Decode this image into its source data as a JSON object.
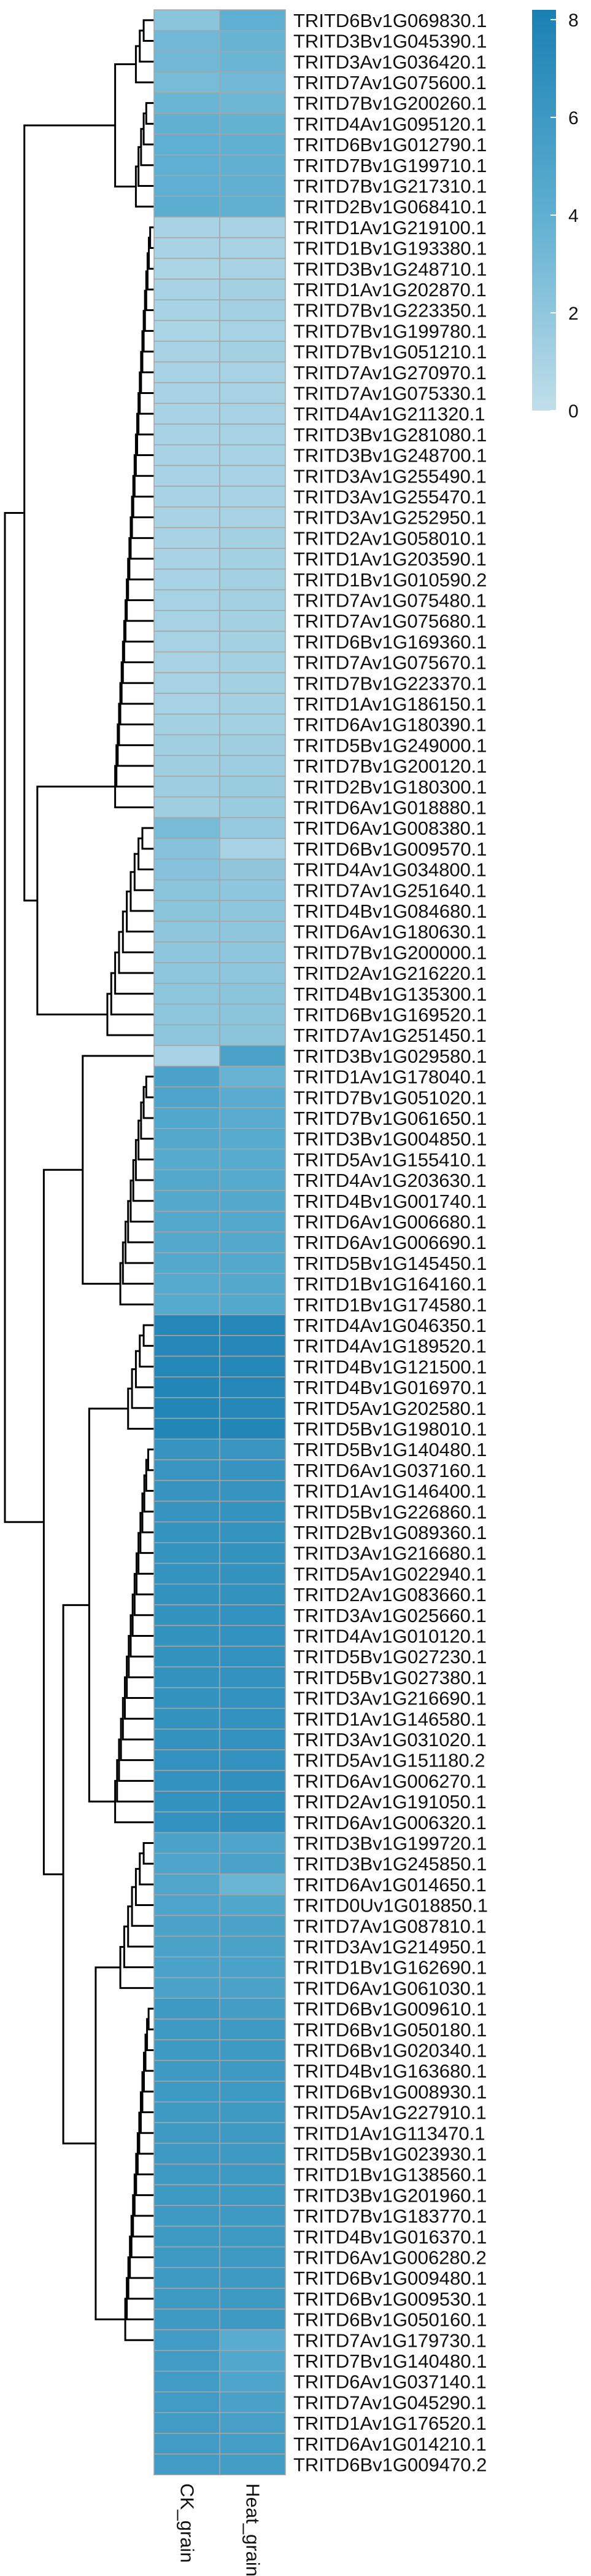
{
  "chart_data": {
    "type": "heatmap",
    "columns": [
      "CK_grain",
      "Heat_grain"
    ],
    "rows": [
      "TRITD6Bv1G069830.1",
      "TRITD3Bv1G045390.1",
      "TRITD3Av1G036420.1",
      "TRITD7Av1G075600.1",
      "TRITD7Bv1G200260.1",
      "TRITD4Av1G095120.1",
      "TRITD6Bv1G012790.1",
      "TRITD7Bv1G199710.1",
      "TRITD7Bv1G217310.1",
      "TRITD2Bv1G068410.1",
      "TRITD1Av1G219100.1",
      "TRITD1Bv1G193380.1",
      "TRITD3Bv1G248710.1",
      "TRITD1Av1G202870.1",
      "TRITD7Bv1G223350.1",
      "TRITD7Bv1G199780.1",
      "TRITD7Bv1G051210.1",
      "TRITD7Av1G270970.1",
      "TRITD7Av1G075330.1",
      "TRITD4Av1G211320.1",
      "TRITD3Bv1G281080.1",
      "TRITD3Bv1G248700.1",
      "TRITD3Av1G255490.1",
      "TRITD3Av1G255470.1",
      "TRITD3Av1G252950.1",
      "TRITD2Av1G058010.1",
      "TRITD1Av1G203590.1",
      "TRITD1Bv1G010590.2",
      "TRITD7Av1G075480.1",
      "TRITD7Av1G075680.1",
      "TRITD6Bv1G169360.1",
      "TRITD7Av1G075670.1",
      "TRITD7Bv1G223370.1",
      "TRITD1Av1G186150.1",
      "TRITD6Av1G180390.1",
      "TRITD5Bv1G249000.1",
      "TRITD7Bv1G200120.1",
      "TRITD2Bv1G180300.1",
      "TRITD6Av1G018880.1",
      "TRITD6Av1G008380.1",
      "TRITD6Bv1G009570.1",
      "TRITD4Av1G034800.1",
      "TRITD7Av1G251640.1",
      "TRITD4Bv1G084680.1",
      "TRITD6Av1G180630.1",
      "TRITD7Bv1G200000.1",
      "TRITD2Av1G216220.1",
      "TRITD4Bv1G135300.1",
      "TRITD6Bv1G169520.1",
      "TRITD7Av1G251450.1",
      "TRITD3Bv1G029580.1",
      "TRITD1Av1G178040.1",
      "TRITD7Bv1G051020.1",
      "TRITD7Bv1G061650.1",
      "TRITD3Bv1G004850.1",
      "TRITD5Av1G155410.1",
      "TRITD4Av1G203630.1",
      "TRITD4Bv1G001740.1",
      "TRITD6Av1G006680.1",
      "TRITD6Av1G006690.1",
      "TRITD5Bv1G145450.1",
      "TRITD1Bv1G164160.1",
      "TRITD1Bv1G174580.1",
      "TRITD4Av1G046350.1",
      "TRITD4Av1G189520.1",
      "TRITD4Bv1G121500.1",
      "TRITD4Bv1G016970.1",
      "TRITD5Av1G202580.1",
      "TRITD5Bv1G198010.1",
      "TRITD5Bv1G140480.1",
      "TRITD6Av1G037160.1",
      "TRITD1Av1G146400.1",
      "TRITD5Bv1G226860.1",
      "TRITD2Bv1G089360.1",
      "TRITD3Av1G216680.1",
      "TRITD5Av1G022940.1",
      "TRITD2Av1G083660.1",
      "TRITD3Av1G025660.1",
      "TRITD4Av1G010120.1",
      "TRITD5Bv1G027230.1",
      "TRITD5Bv1G027380.1",
      "TRITD3Av1G216690.1",
      "TRITD1Av1G146580.1",
      "TRITD3Av1G031020.1",
      "TRITD5Av1G151180.2",
      "TRITD6Av1G006270.1",
      "TRITD2Av1G191050.1",
      "TRITD6Av1G006320.1",
      "TRITD3Bv1G199720.1",
      "TRITD3Bv1G245850.1",
      "TRITD6Av1G014650.1",
      "TRITD0Uv1G018850.1",
      "TRITD7Av1G087810.1",
      "TRITD3Av1G214950.1",
      "TRITD1Bv1G162690.1",
      "TRITD6Av1G061030.1",
      "TRITD6Bv1G009610.1",
      "TRITD6Bv1G050180.1",
      "TRITD6Bv1G020340.1",
      "TRITD4Bv1G163680.1",
      "TRITD6Bv1G008930.1",
      "TRITD5Av1G227910.1",
      "TRITD1Av1G113470.1",
      "TRITD5Bv1G023930.1",
      "TRITD1Bv1G138560.1",
      "TRITD3Bv1G201960.1",
      "TRITD7Bv1G183770.1",
      "TRITD4Bv1G016370.1",
      "TRITD6Av1G006280.2",
      "TRITD6Bv1G009480.1",
      "TRITD6Bv1G009530.1",
      "TRITD6Bv1G050160.1",
      "TRITD7Av1G179730.1",
      "TRITD7Bv1G140480.1",
      "TRITD6Av1G037140.1",
      "TRITD7Av1G045290.1",
      "TRITD1Av1G176520.1",
      "TRITD6Av1G014210.1",
      "TRITD6Bv1G009470.2"
    ],
    "values": [
      [
        2.2,
        4.0
      ],
      [
        3.3,
        3.7
      ],
      [
        3.3,
        3.5
      ],
      [
        3.0,
        3.3
      ],
      [
        3.5,
        3.4
      ],
      [
        3.9,
        3.8
      ],
      [
        4.0,
        3.9
      ],
      [
        4.0,
        3.9
      ],
      [
        4.0,
        3.9
      ],
      [
        4.1,
        3.9
      ],
      [
        1.0,
        1.1
      ],
      [
        1.0,
        1.1
      ],
      [
        0.9,
        1.1
      ],
      [
        1.0,
        1.2
      ],
      [
        1.0,
        1.2
      ],
      [
        0.9,
        1.1
      ],
      [
        1.0,
        1.2
      ],
      [
        1.0,
        1.1
      ],
      [
        1.0,
        1.1
      ],
      [
        1.0,
        1.1
      ],
      [
        1.0,
        1.1
      ],
      [
        1.0,
        1.1
      ],
      [
        1.0,
        1.1
      ],
      [
        1.0,
        1.1
      ],
      [
        1.0,
        1.1
      ],
      [
        1.0,
        1.2
      ],
      [
        1.0,
        1.2
      ],
      [
        1.0,
        1.2
      ],
      [
        1.1,
        1.2
      ],
      [
        1.1,
        1.2
      ],
      [
        1.1,
        1.2
      ],
      [
        1.1,
        1.2
      ],
      [
        1.1,
        1.2
      ],
      [
        1.1,
        1.2
      ],
      [
        1.2,
        1.2
      ],
      [
        1.3,
        1.4
      ],
      [
        1.4,
        1.5
      ],
      [
        1.5,
        1.6
      ],
      [
        1.4,
        1.6
      ],
      [
        3.0,
        1.8
      ],
      [
        2.4,
        1.1
      ],
      [
        2.4,
        2.0
      ],
      [
        2.2,
        2.1
      ],
      [
        2.2,
        2.1
      ],
      [
        2.1,
        2.1
      ],
      [
        2.1,
        2.1
      ],
      [
        2.1,
        2.1
      ],
      [
        2.1,
        2.2
      ],
      [
        2.1,
        2.2
      ],
      [
        2.1,
        2.2
      ],
      [
        1.0,
        5.2
      ],
      [
        5.1,
        3.7
      ],
      [
        5.0,
        4.3
      ],
      [
        4.7,
        4.3
      ],
      [
        4.6,
        4.4
      ],
      [
        4.5,
        4.4
      ],
      [
        4.6,
        4.5
      ],
      [
        4.6,
        4.6
      ],
      [
        4.6,
        4.6
      ],
      [
        4.6,
        4.6
      ],
      [
        4.6,
        4.6
      ],
      [
        4.5,
        4.6
      ],
      [
        4.5,
        4.6
      ],
      [
        7.6,
        7.6
      ],
      [
        7.6,
        7.6
      ],
      [
        7.6,
        7.6
      ],
      [
        7.7,
        7.6
      ],
      [
        7.7,
        7.6
      ],
      [
        7.7,
        7.7
      ],
      [
        6.4,
        6.3
      ],
      [
        6.3,
        6.4
      ],
      [
        6.4,
        6.4
      ],
      [
        6.4,
        6.5
      ],
      [
        6.5,
        6.5
      ],
      [
        6.5,
        6.6
      ],
      [
        6.5,
        6.6
      ],
      [
        6.6,
        6.6
      ],
      [
        6.6,
        6.7
      ],
      [
        6.6,
        6.7
      ],
      [
        6.6,
        6.7
      ],
      [
        6.6,
        6.7
      ],
      [
        6.6,
        6.7
      ],
      [
        6.6,
        6.7
      ],
      [
        6.6,
        6.7
      ],
      [
        6.7,
        6.7
      ],
      [
        6.7,
        6.8
      ],
      [
        6.6,
        6.8
      ],
      [
        6.7,
        6.8
      ],
      [
        5.1,
        5.0
      ],
      [
        5.0,
        5.2
      ],
      [
        4.9,
        3.5
      ],
      [
        5.0,
        4.8
      ],
      [
        5.1,
        5.1
      ],
      [
        5.1,
        5.1
      ],
      [
        5.1,
        5.1
      ],
      [
        5.1,
        5.1
      ],
      [
        5.9,
        5.6
      ],
      [
        5.9,
        5.9
      ],
      [
        5.9,
        5.9
      ],
      [
        5.9,
        5.9
      ],
      [
        5.9,
        5.9
      ],
      [
        5.9,
        5.9
      ],
      [
        5.9,
        5.9
      ],
      [
        5.9,
        5.9
      ],
      [
        5.9,
        5.9
      ],
      [
        5.9,
        5.9
      ],
      [
        5.9,
        5.9
      ],
      [
        5.9,
        5.9
      ],
      [
        5.9,
        5.9
      ],
      [
        5.9,
        5.9
      ],
      [
        5.9,
        5.9
      ],
      [
        5.9,
        5.9
      ],
      [
        5.8,
        4.3
      ],
      [
        5.8,
        4.7
      ],
      [
        5.8,
        5.0
      ],
      [
        5.8,
        5.3
      ],
      [
        5.8,
        5.4
      ],
      [
        5.8,
        5.5
      ],
      [
        5.8,
        5.6
      ]
    ],
    "legend": {
      "ticks": [
        0,
        2,
        4,
        6,
        8
      ],
      "range": [
        0,
        8.2
      ],
      "color_low": "#c1dfea",
      "color_mid": "#5caed0",
      "color_high": "#1a80b3"
    },
    "cell_border_color": "#a6a6a6",
    "row_dendrogram": true
  }
}
